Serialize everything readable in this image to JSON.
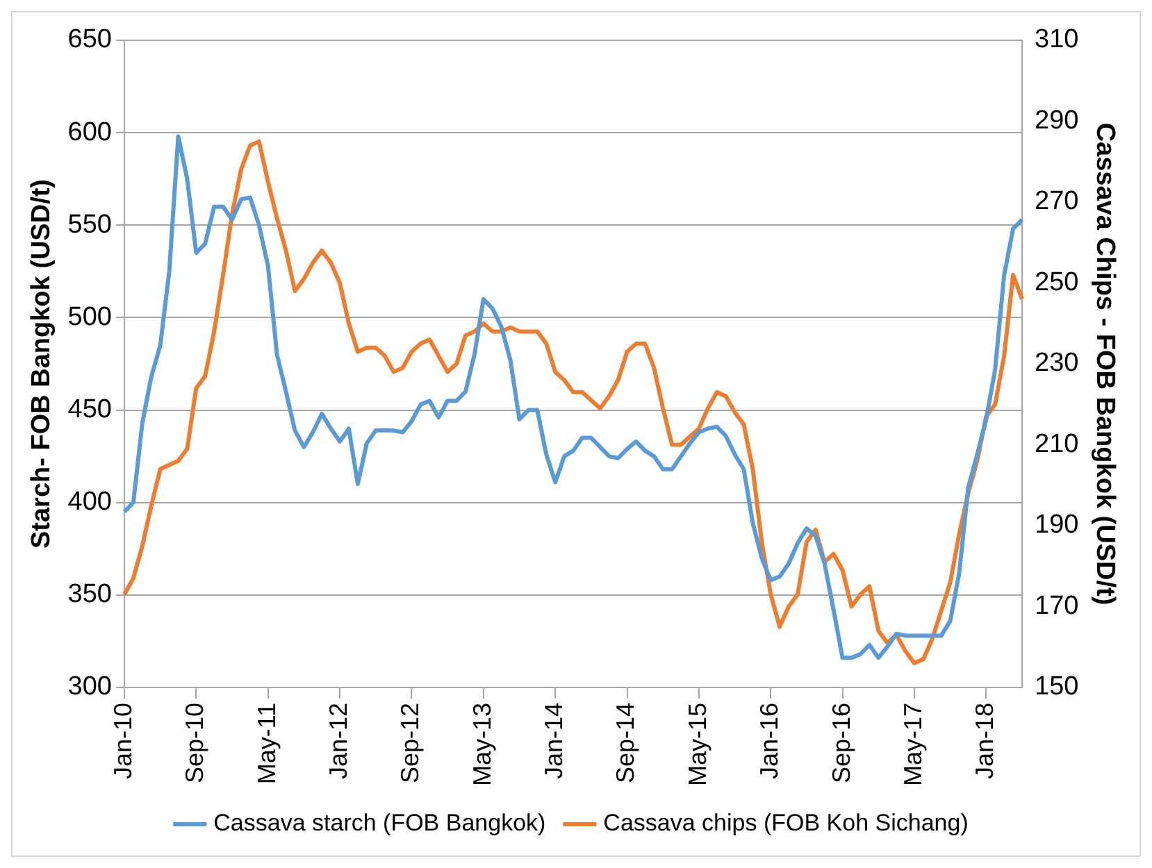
{
  "chart_data": {
    "type": "line",
    "ylabel": "Starch- FOB Bangkok (USD/t)",
    "y2label": "Cassava Chips - FOB Bangkok (USD/t)",
    "categories": [
      "Jan-10",
      null,
      null,
      null,
      null,
      null,
      null,
      null,
      "Sep-10",
      null,
      null,
      null,
      null,
      null,
      null,
      null,
      "May-11",
      null,
      null,
      null,
      null,
      null,
      null,
      null,
      "Jan-12",
      null,
      null,
      null,
      null,
      null,
      null,
      null,
      "Sep-12",
      null,
      null,
      null,
      null,
      null,
      null,
      null,
      "May-13",
      null,
      null,
      null,
      null,
      null,
      null,
      null,
      "Jan-14",
      null,
      null,
      null,
      null,
      null,
      null,
      null,
      "Sep-14",
      null,
      null,
      null,
      null,
      null,
      null,
      null,
      "May-15",
      null,
      null,
      null,
      null,
      null,
      null,
      null,
      "Jan-16",
      null,
      null,
      null,
      null,
      null,
      null,
      null,
      "Sep-16",
      null,
      null,
      null,
      null,
      null,
      null,
      null,
      "May-17",
      null,
      null,
      null,
      null,
      null,
      null,
      null,
      "Jan-18",
      null,
      null,
      null,
      null
    ],
    "series": [
      {
        "name": "Cassava starch (FOB Bangkok)",
        "color": "#5b9bd5",
        "values": [
          395,
          400,
          443,
          468,
          485,
          525,
          598,
          575,
          535,
          540,
          560,
          560,
          553,
          564,
          565,
          550,
          528,
          480,
          460,
          439,
          430,
          438,
          448,
          440,
          433,
          440,
          410,
          432,
          439,
          439,
          439,
          438,
          444,
          453,
          455,
          446,
          455,
          455,
          460,
          480,
          510,
          505,
          495,
          477,
          445,
          450,
          450,
          426,
          411,
          425,
          428,
          435,
          435,
          430,
          425,
          424,
          429,
          433,
          428,
          425,
          418,
          418,
          425,
          432,
          438,
          440,
          441,
          436,
          426,
          418,
          389,
          370,
          358,
          360,
          367,
          378,
          386,
          382,
          367,
          342,
          316,
          316,
          318,
          323,
          316,
          322,
          329,
          328,
          328,
          328,
          328,
          328,
          336,
          362,
          408,
          426,
          445,
          472,
          523,
          548,
          553
        ]
      },
      {
        "name": "Cassava chips (FOB Koh Sichang)",
        "color": "#ed7d31",
        "axis": "y2",
        "values": [
          173,
          177,
          185,
          195,
          204,
          205,
          206,
          209,
          224,
          227,
          238,
          252,
          267,
          278,
          284,
          285,
          275,
          266,
          258,
          248,
          251,
          255,
          258,
          255,
          250,
          240,
          233,
          234,
          234,
          232,
          228,
          229,
          233,
          235,
          236,
          232,
          228,
          230,
          237,
          238,
          240,
          238,
          238,
          239,
          238,
          238,
          238,
          235,
          228,
          226,
          223,
          223,
          221,
          219,
          222,
          226,
          233,
          235,
          235,
          229,
          219,
          210,
          210,
          212,
          214,
          219,
          223,
          222,
          218,
          215,
          204,
          186,
          173,
          165,
          170,
          173,
          186,
          189,
          181,
          183,
          179,
          170,
          173,
          175,
          164,
          161,
          163,
          159,
          156,
          157,
          162,
          169,
          176,
          188,
          198,
          206,
          217,
          220,
          232,
          252,
          246
        ]
      }
    ],
    "ylim": [
      300,
      650
    ],
    "yticks": [
      300,
      350,
      400,
      450,
      500,
      550,
      600,
      650
    ],
    "y2lim": [
      150,
      310
    ],
    "y2ticks": [
      150,
      170,
      190,
      210,
      230,
      250,
      270,
      290,
      310
    ],
    "grid": "y",
    "legend": "bottom",
    "marker": "none",
    "line_style": "solid"
  }
}
